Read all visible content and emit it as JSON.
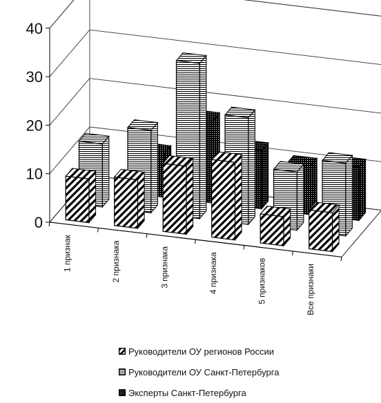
{
  "chart_data": {
    "type": "bar",
    "title": "",
    "xlabel": "",
    "ylabel": "",
    "ylim": [
      0,
      40
    ],
    "yticks": [
      0,
      10,
      20,
      30,
      40
    ],
    "grid": true,
    "legend_position": "bottom",
    "categories": [
      "1 признак",
      "2 признака",
      "3 признака",
      "4 признака",
      "5 признаков",
      "Все признаки"
    ],
    "series": [
      {
        "name": "Руководители ОУ регионов России",
        "pattern": "diagonal-stripes",
        "values": [
          9,
          10,
          14,
          16,
          6,
          8
        ]
      },
      {
        "name": "Руководители ОУ Санкт-Петербурга",
        "pattern": "horizontal-stripes",
        "values": [
          13,
          17,
          32,
          22,
          12,
          15
        ]
      },
      {
        "name": "Эксперты Санкт-Петербурга",
        "pattern": "dotted-black",
        "values": [
          0,
          9,
          17,
          12,
          10,
          11
        ]
      }
    ]
  }
}
